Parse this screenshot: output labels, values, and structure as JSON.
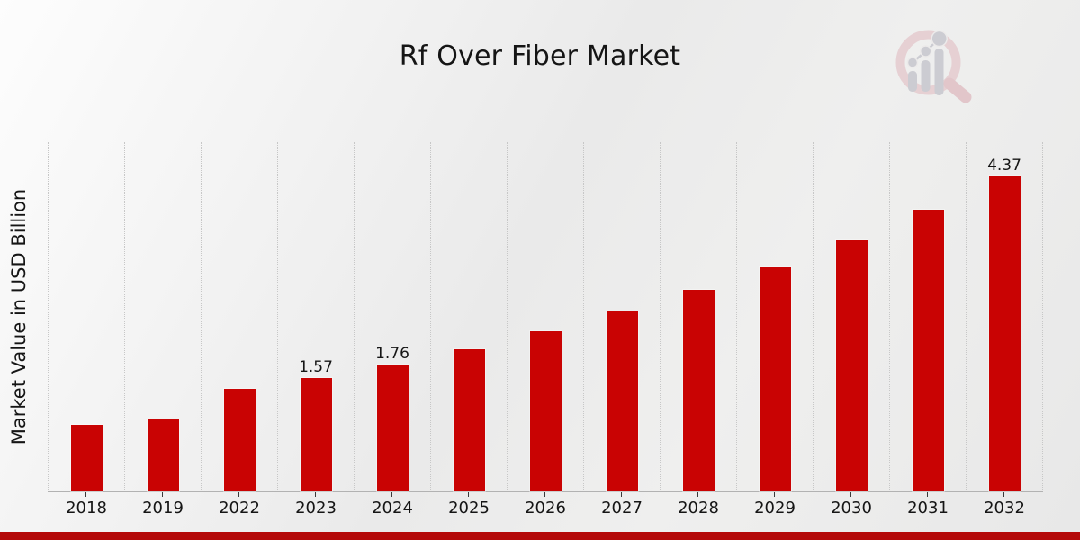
{
  "page": {
    "banner_color": "#b40909"
  },
  "chart_data": {
    "type": "bar",
    "title": "Rf Over Fiber Market",
    "ylabel": "Market Value in USD Billion",
    "xlabel": "",
    "categories": [
      "2018",
      "2019",
      "2022",
      "2023",
      "2024",
      "2025",
      "2026",
      "2027",
      "2028",
      "2029",
      "2030",
      "2031",
      "2032"
    ],
    "values": [
      0.92,
      1.0,
      1.42,
      1.57,
      1.76,
      1.97,
      2.22,
      2.5,
      2.8,
      3.11,
      3.49,
      3.91,
      4.37
    ],
    "data_labels": [
      "",
      "",
      "",
      "1.57",
      "1.76",
      "",
      "",
      "",
      "",
      "",
      "",
      "",
      "4.37"
    ],
    "bar_color": "#c90303",
    "ylim": [
      0,
      4.85
    ],
    "grid": "vertical-dotted",
    "gridline_color": "#c7c7c7",
    "axis_line_color": "#b2b2b2",
    "text_color": "#151515",
    "legend": "none"
  },
  "logo": {
    "name": "magnifier-bar-chart-watermark",
    "ring_color": "#e5cfd2",
    "handle_color": "#e2c6ca",
    "bars_color": "#ccccd2"
  }
}
